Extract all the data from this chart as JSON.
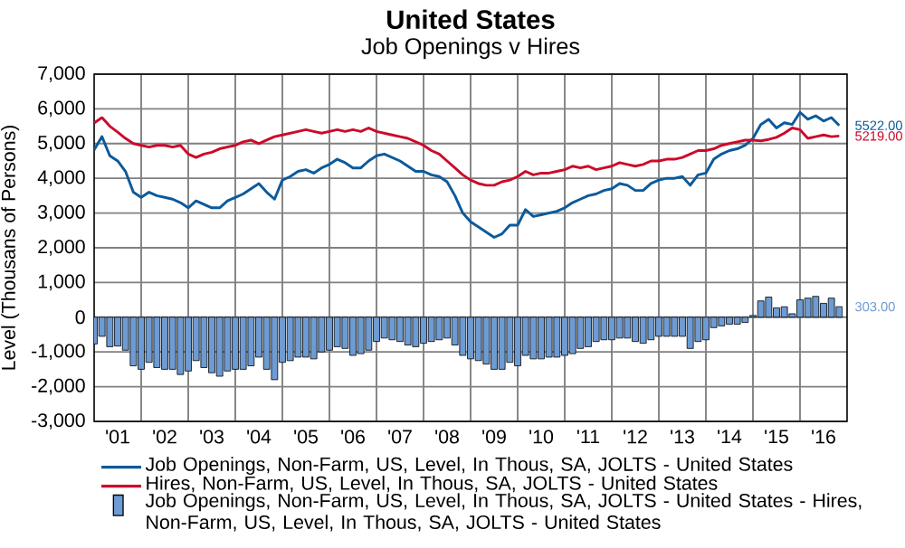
{
  "chart_data": {
    "type": "line",
    "title": "United States",
    "subtitle": "Job Openings v Hires",
    "ylabel": "Level (Thousans of Persons)",
    "x": [
      "2001-01",
      "2001-03",
      "2001-05",
      "2001-07",
      "2001-09",
      "2001-11",
      "2002-01",
      "2002-03",
      "2002-05",
      "2002-07",
      "2002-09",
      "2002-11",
      "2003-01",
      "2003-03",
      "2003-05",
      "2003-07",
      "2003-09",
      "2003-11",
      "2004-01",
      "2004-03",
      "2004-05",
      "2004-07",
      "2004-09",
      "2004-11",
      "2005-01",
      "2005-03",
      "2005-05",
      "2005-07",
      "2005-09",
      "2005-11",
      "2006-01",
      "2006-03",
      "2006-05",
      "2006-07",
      "2006-09",
      "2006-11",
      "2007-01",
      "2007-03",
      "2007-05",
      "2007-07",
      "2007-09",
      "2007-11",
      "2008-01",
      "2008-03",
      "2008-05",
      "2008-07",
      "2008-09",
      "2008-11",
      "2009-01",
      "2009-03",
      "2009-05",
      "2009-07",
      "2009-09",
      "2009-11",
      "2010-01",
      "2010-03",
      "2010-05",
      "2010-07",
      "2010-09",
      "2010-11",
      "2011-01",
      "2011-03",
      "2011-05",
      "2011-07",
      "2011-09",
      "2011-11",
      "2012-01",
      "2012-03",
      "2012-05",
      "2012-07",
      "2012-09",
      "2012-11",
      "2013-01",
      "2013-03",
      "2013-05",
      "2013-07",
      "2013-09",
      "2013-11",
      "2014-01",
      "2014-03",
      "2014-05",
      "2014-07",
      "2014-09",
      "2014-11",
      "2015-01",
      "2015-03",
      "2015-05",
      "2015-07",
      "2015-09",
      "2015-11",
      "2016-01",
      "2016-03",
      "2016-05",
      "2016-07",
      "2016-09",
      "2016-11"
    ],
    "series": [
      {
        "name": "Job Openings, Non-Farm, US, Level, In Thous, SA, JOLTS - United States",
        "color": "#0b5a9c",
        "values": [
          4820,
          5200,
          4650,
          4500,
          4200,
          3600,
          3450,
          3600,
          3500,
          3450,
          3400,
          3300,
          3150,
          3350,
          3250,
          3150,
          3150,
          3350,
          3450,
          3550,
          3700,
          3850,
          3600,
          3400,
          3950,
          4050,
          4200,
          4250,
          4150,
          4300,
          4400,
          4550,
          4450,
          4300,
          4300,
          4500,
          4650,
          4700,
          4600,
          4500,
          4350,
          4200,
          4200,
          4100,
          4050,
          3900,
          3500,
          3000,
          2750,
          2600,
          2450,
          2300,
          2400,
          2650,
          2650,
          3100,
          2900,
          2950,
          3000,
          3050,
          3150,
          3300,
          3400,
          3500,
          3550,
          3650,
          3700,
          3850,
          3800,
          3650,
          3650,
          3850,
          3950,
          4000,
          4000,
          4050,
          3800,
          4100,
          4150,
          4550,
          4700,
          4800,
          4850,
          4950,
          5150,
          5550,
          5700,
          5450,
          5600,
          5550,
          5900,
          5700,
          5800,
          5650,
          5750,
          5522
        ]
      },
      {
        "name": "Hires, Non-Farm, US, Level, In Thous, SA, JOLTS - United States",
        "color": "#cc0a2a",
        "values": [
          5590,
          5750,
          5500,
          5330,
          5150,
          5000,
          4950,
          4900,
          4950,
          4950,
          4900,
          4950,
          4700,
          4600,
          4700,
          4750,
          4850,
          4900,
          4950,
          5050,
          5100,
          5000,
          5100,
          5200,
          5250,
          5300,
          5350,
          5400,
          5350,
          5300,
          5350,
          5400,
          5350,
          5400,
          5350,
          5450,
          5350,
          5300,
          5250,
          5200,
          5150,
          5050,
          4950,
          4800,
          4700,
          4500,
          4300,
          4100,
          3950,
          3850,
          3800,
          3800,
          3900,
          3950,
          4050,
          4200,
          4100,
          4150,
          4150,
          4200,
          4250,
          4350,
          4300,
          4350,
          4250,
          4300,
          4350,
          4450,
          4400,
          4350,
          4400,
          4500,
          4500,
          4550,
          4550,
          4600,
          4700,
          4800,
          4800,
          4850,
          4950,
          5000,
          5050,
          5100,
          5100,
          5080,
          5120,
          5180,
          5300,
          5450,
          5400,
          5150,
          5200,
          5250,
          5200,
          5219
        ]
      },
      {
        "name": "Job Openings, Non-Farm, US, Level, In Thous, SA, JOLTS - United States - Hires, Non-Farm, US, Level, In Thous, SA, JOLTS - United States",
        "type": "bar",
        "color": "#6d9bd3",
        "values": [
          -770,
          -550,
          -850,
          -830,
          -950,
          -1400,
          -1500,
          -1300,
          -1450,
          -1500,
          -1500,
          -1650,
          -1550,
          -1250,
          -1450,
          -1600,
          -1700,
          -1550,
          -1500,
          -1500,
          -1400,
          -1150,
          -1500,
          -1800,
          -1300,
          -1250,
          -1150,
          -1150,
          -1200,
          -1000,
          -950,
          -850,
          -900,
          -1100,
          -1050,
          -950,
          -700,
          -600,
          -650,
          -700,
          -800,
          -850,
          -750,
          -700,
          -650,
          -600,
          -800,
          -1100,
          -1200,
          -1250,
          -1350,
          -1500,
          -1500,
          -1300,
          -1400,
          -1100,
          -1200,
          -1200,
          -1150,
          -1150,
          -1100,
          -1050,
          -900,
          -850,
          -700,
          -650,
          -650,
          -600,
          -600,
          -700,
          -750,
          -650,
          -550,
          -550,
          -550,
          -550,
          -900,
          -700,
          -650,
          -300,
          -250,
          -200,
          -200,
          -150,
          50,
          470,
          580,
          270,
          300,
          100,
          500,
          550,
          600,
          400,
          550,
          303
        ]
      }
    ],
    "xlim": [
      "2001-01",
      "2017-01"
    ],
    "xticks": [
      {
        "value": "2002-01",
        "label": null
      },
      {
        "value": "2003-01",
        "label": null
      },
      {
        "value": "2004-01",
        "label": null
      },
      {
        "value": "2005-01",
        "label": null
      },
      {
        "value": "2006-01",
        "label": null
      },
      {
        "value": "2007-01",
        "label": null
      },
      {
        "value": "2008-01",
        "label": null
      },
      {
        "value": "2009-01",
        "label": null
      },
      {
        "value": "2010-01",
        "label": null
      },
      {
        "value": "2011-01",
        "label": null
      },
      {
        "value": "2012-01",
        "label": null
      },
      {
        "value": "2013-01",
        "label": null
      },
      {
        "value": "2014-01",
        "label": null
      },
      {
        "value": "2015-01",
        "label": null
      },
      {
        "value": "2016-01",
        "label": null
      },
      {
        "value": "2001-07",
        "label": "'01"
      },
      {
        "value": "2002-07",
        "label": "'02"
      },
      {
        "value": "2003-07",
        "label": "'03"
      },
      {
        "value": "2004-07",
        "label": "'04"
      },
      {
        "value": "2005-07",
        "label": "'05"
      },
      {
        "value": "2006-07",
        "label": "'06"
      },
      {
        "value": "2007-07",
        "label": "'07"
      },
      {
        "value": "2008-07",
        "label": "'08"
      },
      {
        "value": "2009-07",
        "label": "'09"
      },
      {
        "value": "2010-07",
        "label": "'10"
      },
      {
        "value": "2011-07",
        "label": "'11"
      },
      {
        "value": "2012-07",
        "label": "'12"
      },
      {
        "value": "2013-07",
        "label": "'13"
      },
      {
        "value": "2014-07",
        "label": "'14"
      },
      {
        "value": "2015-07",
        "label": "'15"
      },
      {
        "value": "2016-07",
        "label": "'16"
      }
    ],
    "ylim": [
      -3000,
      7000
    ],
    "yticks": [
      {
        "value": -3000,
        "label": "-3,000"
      },
      {
        "value": -2000,
        "label": "-2,000"
      },
      {
        "value": -1000,
        "label": "-1,000"
      },
      0,
      {
        "value": 1000,
        "label": "1,000"
      },
      {
        "value": 2000,
        "label": "2,000"
      },
      {
        "value": 3000,
        "label": "3,000"
      },
      {
        "value": 4000,
        "label": "4,000"
      },
      {
        "value": 5000,
        "label": "5,000"
      },
      {
        "value": 6000,
        "label": "6,000"
      },
      {
        "value": 7000,
        "label": "7,000"
      }
    ],
    "annotations": [
      {
        "text": "5522.00",
        "x": "2016-11",
        "y": 5522
      },
      {
        "text": "5219.00",
        "x": "2016-11",
        "y": 5219
      },
      {
        "text": "303.00",
        "x": "2016-11",
        "y": 303
      }
    ],
    "grid": true,
    "legend": "bottom"
  }
}
